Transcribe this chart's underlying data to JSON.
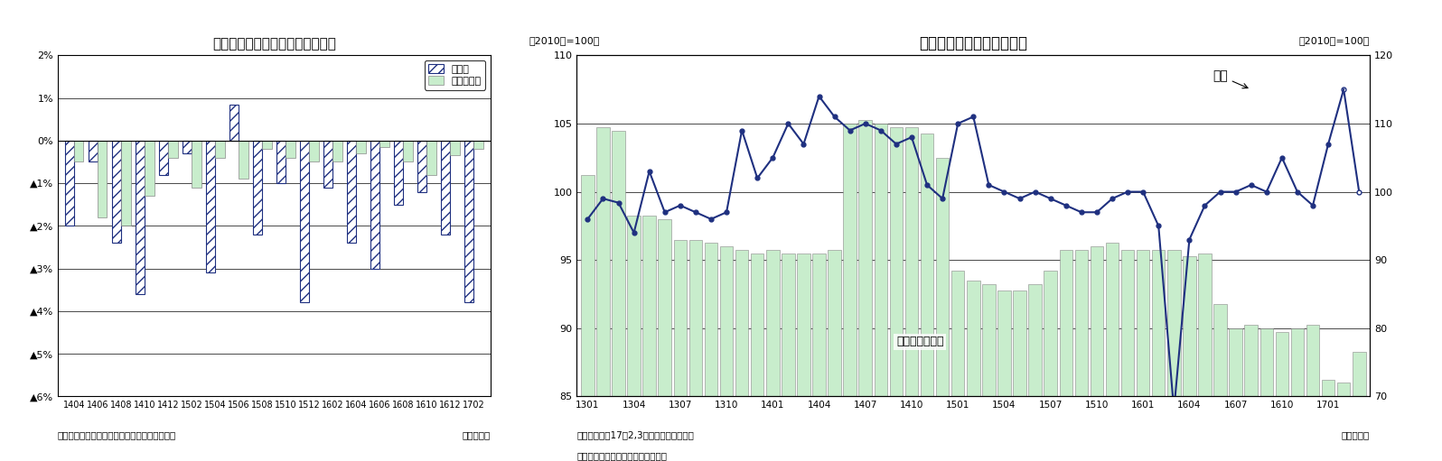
{
  "chart1": {
    "title": "最近の実現率、予測修正率の推移",
    "footer": "（資料）経済産業省「製造工業生産予測指数」",
    "xlabel": "（年・月）",
    "legend_jitsu": "実現率",
    "legend_yosoku": "予測修正率",
    "ylim": [
      -6,
      2
    ],
    "ytick_vals": [
      2,
      1,
      0,
      -1,
      -2,
      -3,
      -4,
      -5,
      -6
    ],
    "ytick_labels": [
      "2%",
      "1%",
      "0%",
      "▲1%",
      "▲2%",
      "▲3%",
      "▲4%",
      "▲5%",
      "▲6%"
    ],
    "categories": [
      "1404",
      "1406",
      "1408",
      "1410",
      "1412",
      "1502",
      "1504",
      "1506",
      "1508",
      "1510",
      "1512",
      "1602",
      "1604",
      "1606",
      "1608",
      "1610",
      "1612",
      "1702"
    ],
    "jitsu": [
      -2.0,
      -0.5,
      -2.4,
      -3.6,
      -0.8,
      -0.3,
      -3.1,
      0.85,
      -2.2,
      -1.0,
      -3.8,
      -1.1,
      -2.4,
      -3.0,
      -1.5,
      -1.2,
      -2.2,
      -3.8
    ],
    "yosoku": [
      -0.5,
      -1.8,
      -2.0,
      -1.3,
      -0.4,
      -1.1,
      -0.4,
      -0.9,
      -0.2,
      -0.4,
      -0.5,
      -0.5,
      -0.3,
      -0.15,
      -0.5,
      -0.8,
      -0.35,
      -0.2
    ],
    "color_jitsu_edge": "#1F3080",
    "color_jitsu_fill": "white",
    "hatch_jitsu": "///",
    "color_yosoku_fill": "#C8EDCC",
    "color_yosoku_edge": "#888888"
  },
  "chart2": {
    "title": "輸送機械の生産、在庫動向",
    "ylabel_left": "（2010年=100）",
    "ylabel_right": "（2010年=100）",
    "footer1": "（注）生産の17年2,3月は予測指数で延長",
    "footer2": "（資料）経済産業省「鉱工業指数」",
    "xlabel": "（年・月）",
    "ylim_left": [
      85,
      110
    ],
    "ylim_right": [
      70,
      120
    ],
    "yticks_left": [
      85,
      90,
      95,
      100,
      105,
      110
    ],
    "ytick_labels_left": [
      "85",
      "90",
      "95",
      "100",
      "105",
      "110"
    ],
    "yticks_right": [
      70,
      80,
      90,
      100,
      110,
      120
    ],
    "ytick_labels_right": [
      "70",
      "80",
      "90",
      "100",
      "110",
      "120"
    ],
    "xtick_labels": [
      "1301",
      "1304",
      "1307",
      "1310",
      "1401",
      "1404",
      "1407",
      "1410",
      "1501",
      "1504",
      "1507",
      "1510",
      "1601",
      "1604",
      "1607",
      "1610",
      "1701"
    ],
    "seisan": [
      98.0,
      99.5,
      99.2,
      97.0,
      101.5,
      98.5,
      99.0,
      98.5,
      98.0,
      98.5,
      104.5,
      101.0,
      102.5,
      105.0,
      103.5,
      107.0,
      105.5,
      104.5,
      105.0,
      104.5,
      103.5,
      104.0,
      100.5,
      99.5,
      105.0,
      105.5,
      100.5,
      100.0,
      99.5,
      100.0,
      99.5,
      99.0,
      98.5,
      98.5,
      99.5,
      100.0,
      100.0,
      97.5,
      84.0,
      96.5,
      99.0,
      100.0,
      100.0,
      100.5,
      100.0,
      102.5,
      100.0,
      99.0,
      103.5,
      107.5,
      100.0
    ],
    "n_seisan": 51,
    "n_forecast": 2,
    "zaiko": [
      102.5,
      109.5,
      109.0,
      96.5,
      96.5,
      96.0,
      93.0,
      93.0,
      92.5,
      92.0,
      91.5,
      91.0,
      91.5,
      91.0,
      91.0,
      91.0,
      91.5,
      110.0,
      110.5,
      110.0,
      109.5,
      109.5,
      108.5,
      105.0,
      88.5,
      87.0,
      86.5,
      85.5,
      85.5,
      86.5,
      88.5,
      91.5,
      91.5,
      92.0,
      92.5,
      91.5,
      91.5,
      91.5,
      91.5,
      90.5,
      91.0,
      83.5,
      80.0,
      80.5,
      80.0,
      79.5,
      80.0,
      80.5,
      72.5,
      72.0,
      76.5
    ],
    "n_zaiko": 51,
    "color_zaiko": "#C8EDCC",
    "color_seisan_line": "#1F3080",
    "annotation_seisan": "生産",
    "annotation_zaiko": "在庫（右目盛）"
  }
}
